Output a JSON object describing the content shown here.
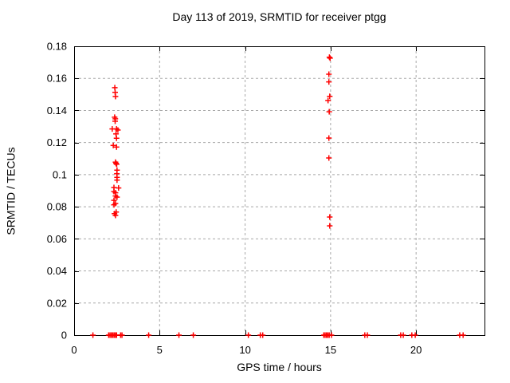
{
  "figure": {
    "background": "#ffffff",
    "text_color": "#000000"
  },
  "chart_data": {
    "type": "scatter",
    "title": "Day 113 of 2019, SRMTID for receiver ptgg",
    "xlabel": "GPS time / hours",
    "ylabel": "SRMTID / TECUs",
    "xlim": [
      0,
      24
    ],
    "ylim": [
      0,
      0.18
    ],
    "xticks": {
      "values": [
        0,
        5,
        10,
        15,
        20
      ],
      "labels": [
        "0",
        "5",
        "10",
        "15",
        "20"
      ]
    },
    "yticks": {
      "values": [
        0,
        0.02,
        0.04,
        0.06,
        0.08,
        0.1,
        0.12,
        0.14,
        0.16,
        0.18
      ],
      "labels": [
        "0",
        "0.02",
        "0.04",
        "0.06",
        "0.08",
        "0.1",
        "0.12",
        "0.14",
        "0.16",
        "0.18"
      ]
    },
    "grid": {
      "show": true,
      "color": "#a8a8a8",
      "style": "dashed"
    },
    "legend": {
      "show": false
    },
    "marker": {
      "shape": "plus",
      "color": "#ff0000",
      "size": 7
    },
    "series": [
      {
        "name": "SRMTID",
        "points": [
          [
            2.38,
            0.1542
          ],
          [
            2.4,
            0.1513
          ],
          [
            2.42,
            0.1487
          ],
          [
            2.37,
            0.1358
          ],
          [
            2.41,
            0.1348
          ],
          [
            2.4,
            0.1333
          ],
          [
            2.23,
            0.1285
          ],
          [
            2.48,
            0.1285
          ],
          [
            2.56,
            0.1278
          ],
          [
            2.45,
            0.1254
          ],
          [
            2.48,
            0.1227
          ],
          [
            2.29,
            0.1182
          ],
          [
            2.48,
            0.1172
          ],
          [
            2.42,
            0.1078
          ],
          [
            2.45,
            0.107
          ],
          [
            2.49,
            0.1065
          ],
          [
            2.51,
            0.1028
          ],
          [
            2.5,
            0.1006
          ],
          [
            2.51,
            0.0983
          ],
          [
            2.51,
            0.0966
          ],
          [
            2.33,
            0.092
          ],
          [
            2.6,
            0.0917
          ],
          [
            2.33,
            0.0895
          ],
          [
            2.42,
            0.0887
          ],
          [
            2.42,
            0.0867
          ],
          [
            2.51,
            0.086
          ],
          [
            2.33,
            0.084
          ],
          [
            2.42,
            0.082
          ],
          [
            2.33,
            0.0812
          ],
          [
            2.46,
            0.0767
          ],
          [
            2.36,
            0.0757
          ],
          [
            2.42,
            0.0746
          ],
          [
            14.93,
            0.1732
          ],
          [
            14.97,
            0.1726
          ],
          [
            14.9,
            0.1626
          ],
          [
            14.9,
            0.1578
          ],
          [
            14.95,
            0.1488
          ],
          [
            14.85,
            0.1462
          ],
          [
            14.92,
            0.1392
          ],
          [
            14.9,
            0.1228
          ],
          [
            14.9,
            0.1104
          ],
          [
            14.95,
            0.0736
          ],
          [
            14.95,
            0.0681
          ],
          [
            1.1,
            0
          ],
          [
            2.02,
            0
          ],
          [
            2.1,
            0
          ],
          [
            2.18,
            0
          ],
          [
            2.26,
            0
          ],
          [
            2.34,
            0
          ],
          [
            2.42,
            0
          ],
          [
            2.48,
            0
          ],
          [
            2.72,
            0
          ],
          [
            2.8,
            0
          ],
          [
            4.36,
            0
          ],
          [
            6.13,
            0
          ],
          [
            6.97,
            0
          ],
          [
            10.19,
            0
          ],
          [
            10.89,
            0
          ],
          [
            11.03,
            0
          ],
          [
            14.6,
            0
          ],
          [
            14.68,
            0
          ],
          [
            14.76,
            0
          ],
          [
            14.84,
            0
          ],
          [
            14.92,
            0
          ],
          [
            15.05,
            0
          ],
          [
            17.0,
            0
          ],
          [
            17.15,
            0
          ],
          [
            19.1,
            0
          ],
          [
            19.25,
            0
          ],
          [
            19.75,
            0
          ],
          [
            19.95,
            0
          ],
          [
            22.55,
            0
          ],
          [
            22.75,
            0
          ]
        ]
      }
    ]
  }
}
